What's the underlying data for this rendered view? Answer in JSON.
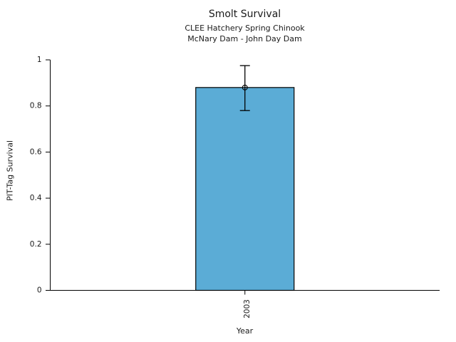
{
  "chart_data": {
    "type": "bar",
    "title": "Smolt Survival",
    "subtitle": [
      "CLEE Hatchery Spring Chinook",
      "McNary Dam - John Day Dam"
    ],
    "xlabel": "Year",
    "ylabel": "PIT-Tag Survival",
    "categories": [
      "2003"
    ],
    "series": [
      {
        "name": "PIT-Tag Survival",
        "values": [
          0.88
        ],
        "error_upper": [
          0.975
        ],
        "error_lower": [
          0.78
        ]
      }
    ],
    "ylim": [
      0,
      1
    ],
    "yticks": [
      0,
      0.2,
      0.4,
      0.6,
      0.8,
      1
    ],
    "ytick_labels": [
      "0",
      "0.2",
      "0.4",
      "0.6",
      "0.8",
      "1"
    ],
    "xtick_rotation": -90,
    "grid": false,
    "legend": null,
    "bar_color": "#5BACD6",
    "edge_color": "#000000",
    "text_color": "#1a1a1a",
    "marker": "open-circle"
  }
}
